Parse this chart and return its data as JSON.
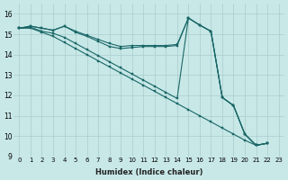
{
  "xlabel": "Humidex (Indice chaleur)",
  "background_color": "#c8e8e8",
  "grid_color": "#aacccc",
  "line_color": "#1a6666",
  "xlim": [
    -0.5,
    23.5
  ],
  "ylim": [
    9,
    16.5
  ],
  "yticks": [
    9,
    10,
    11,
    12,
    13,
    14,
    15,
    16
  ],
  "xticks": [
    0,
    1,
    2,
    3,
    4,
    5,
    6,
    7,
    8,
    9,
    10,
    11,
    12,
    13,
    14,
    15,
    16,
    17,
    18,
    19,
    20,
    21,
    22,
    23
  ],
  "series": [
    {
      "x": [
        0,
        1,
        2,
        3,
        4,
        5,
        6,
        7,
        8,
        9,
        10,
        11,
        12,
        13,
        14,
        15,
        16,
        17,
        18,
        19,
        20,
        21,
        22,
        23
      ],
      "y": [
        15.3,
        15.4,
        15.3,
        15.2,
        15.4,
        15.15,
        14.95,
        14.75,
        14.55,
        14.4,
        14.45,
        14.45,
        14.45,
        14.45,
        14.5,
        15.8,
        15.45,
        15.15,
        11.9,
        11.5,
        10.1,
        9.55,
        9.65,
        null
      ]
    },
    {
      "x": [
        0,
        1,
        2,
        3,
        4,
        5,
        6,
        7,
        8,
        9,
        10,
        11,
        12,
        13,
        14,
        15,
        16,
        17,
        18,
        19,
        20,
        21,
        22,
        23
      ],
      "y": [
        15.3,
        15.4,
        15.3,
        15.2,
        15.4,
        15.1,
        14.9,
        14.65,
        14.4,
        14.3,
        14.35,
        14.4,
        14.4,
        14.4,
        14.45,
        15.8,
        15.45,
        15.15,
        11.9,
        11.5,
        10.1,
        9.55,
        9.65,
        null
      ]
    },
    {
      "x": [
        0,
        1,
        2,
        3,
        4,
        5,
        6,
        7,
        8,
        9,
        10,
        11,
        12,
        13,
        14,
        15,
        16,
        17,
        18,
        19,
        20,
        21,
        22,
        23
      ],
      "y": [
        15.3,
        15.35,
        15.15,
        15.05,
        14.85,
        14.55,
        14.25,
        13.95,
        13.65,
        13.35,
        13.05,
        12.75,
        12.45,
        12.15,
        11.85,
        15.8,
        15.45,
        15.15,
        11.9,
        11.5,
        10.1,
        9.55,
        9.65,
        null
      ]
    },
    {
      "x": [
        0,
        1,
        2,
        3,
        4,
        5,
        6,
        7,
        8,
        9,
        10,
        11,
        12,
        13,
        14,
        15,
        16,
        17,
        18,
        19,
        20,
        21,
        22,
        23
      ],
      "y": [
        15.3,
        15.3,
        15.1,
        14.9,
        14.6,
        14.3,
        14.0,
        13.7,
        13.4,
        13.1,
        12.8,
        12.5,
        12.2,
        11.9,
        11.6,
        11.3,
        11.0,
        10.7,
        10.4,
        10.1,
        9.8,
        9.55,
        9.65,
        null
      ]
    }
  ]
}
